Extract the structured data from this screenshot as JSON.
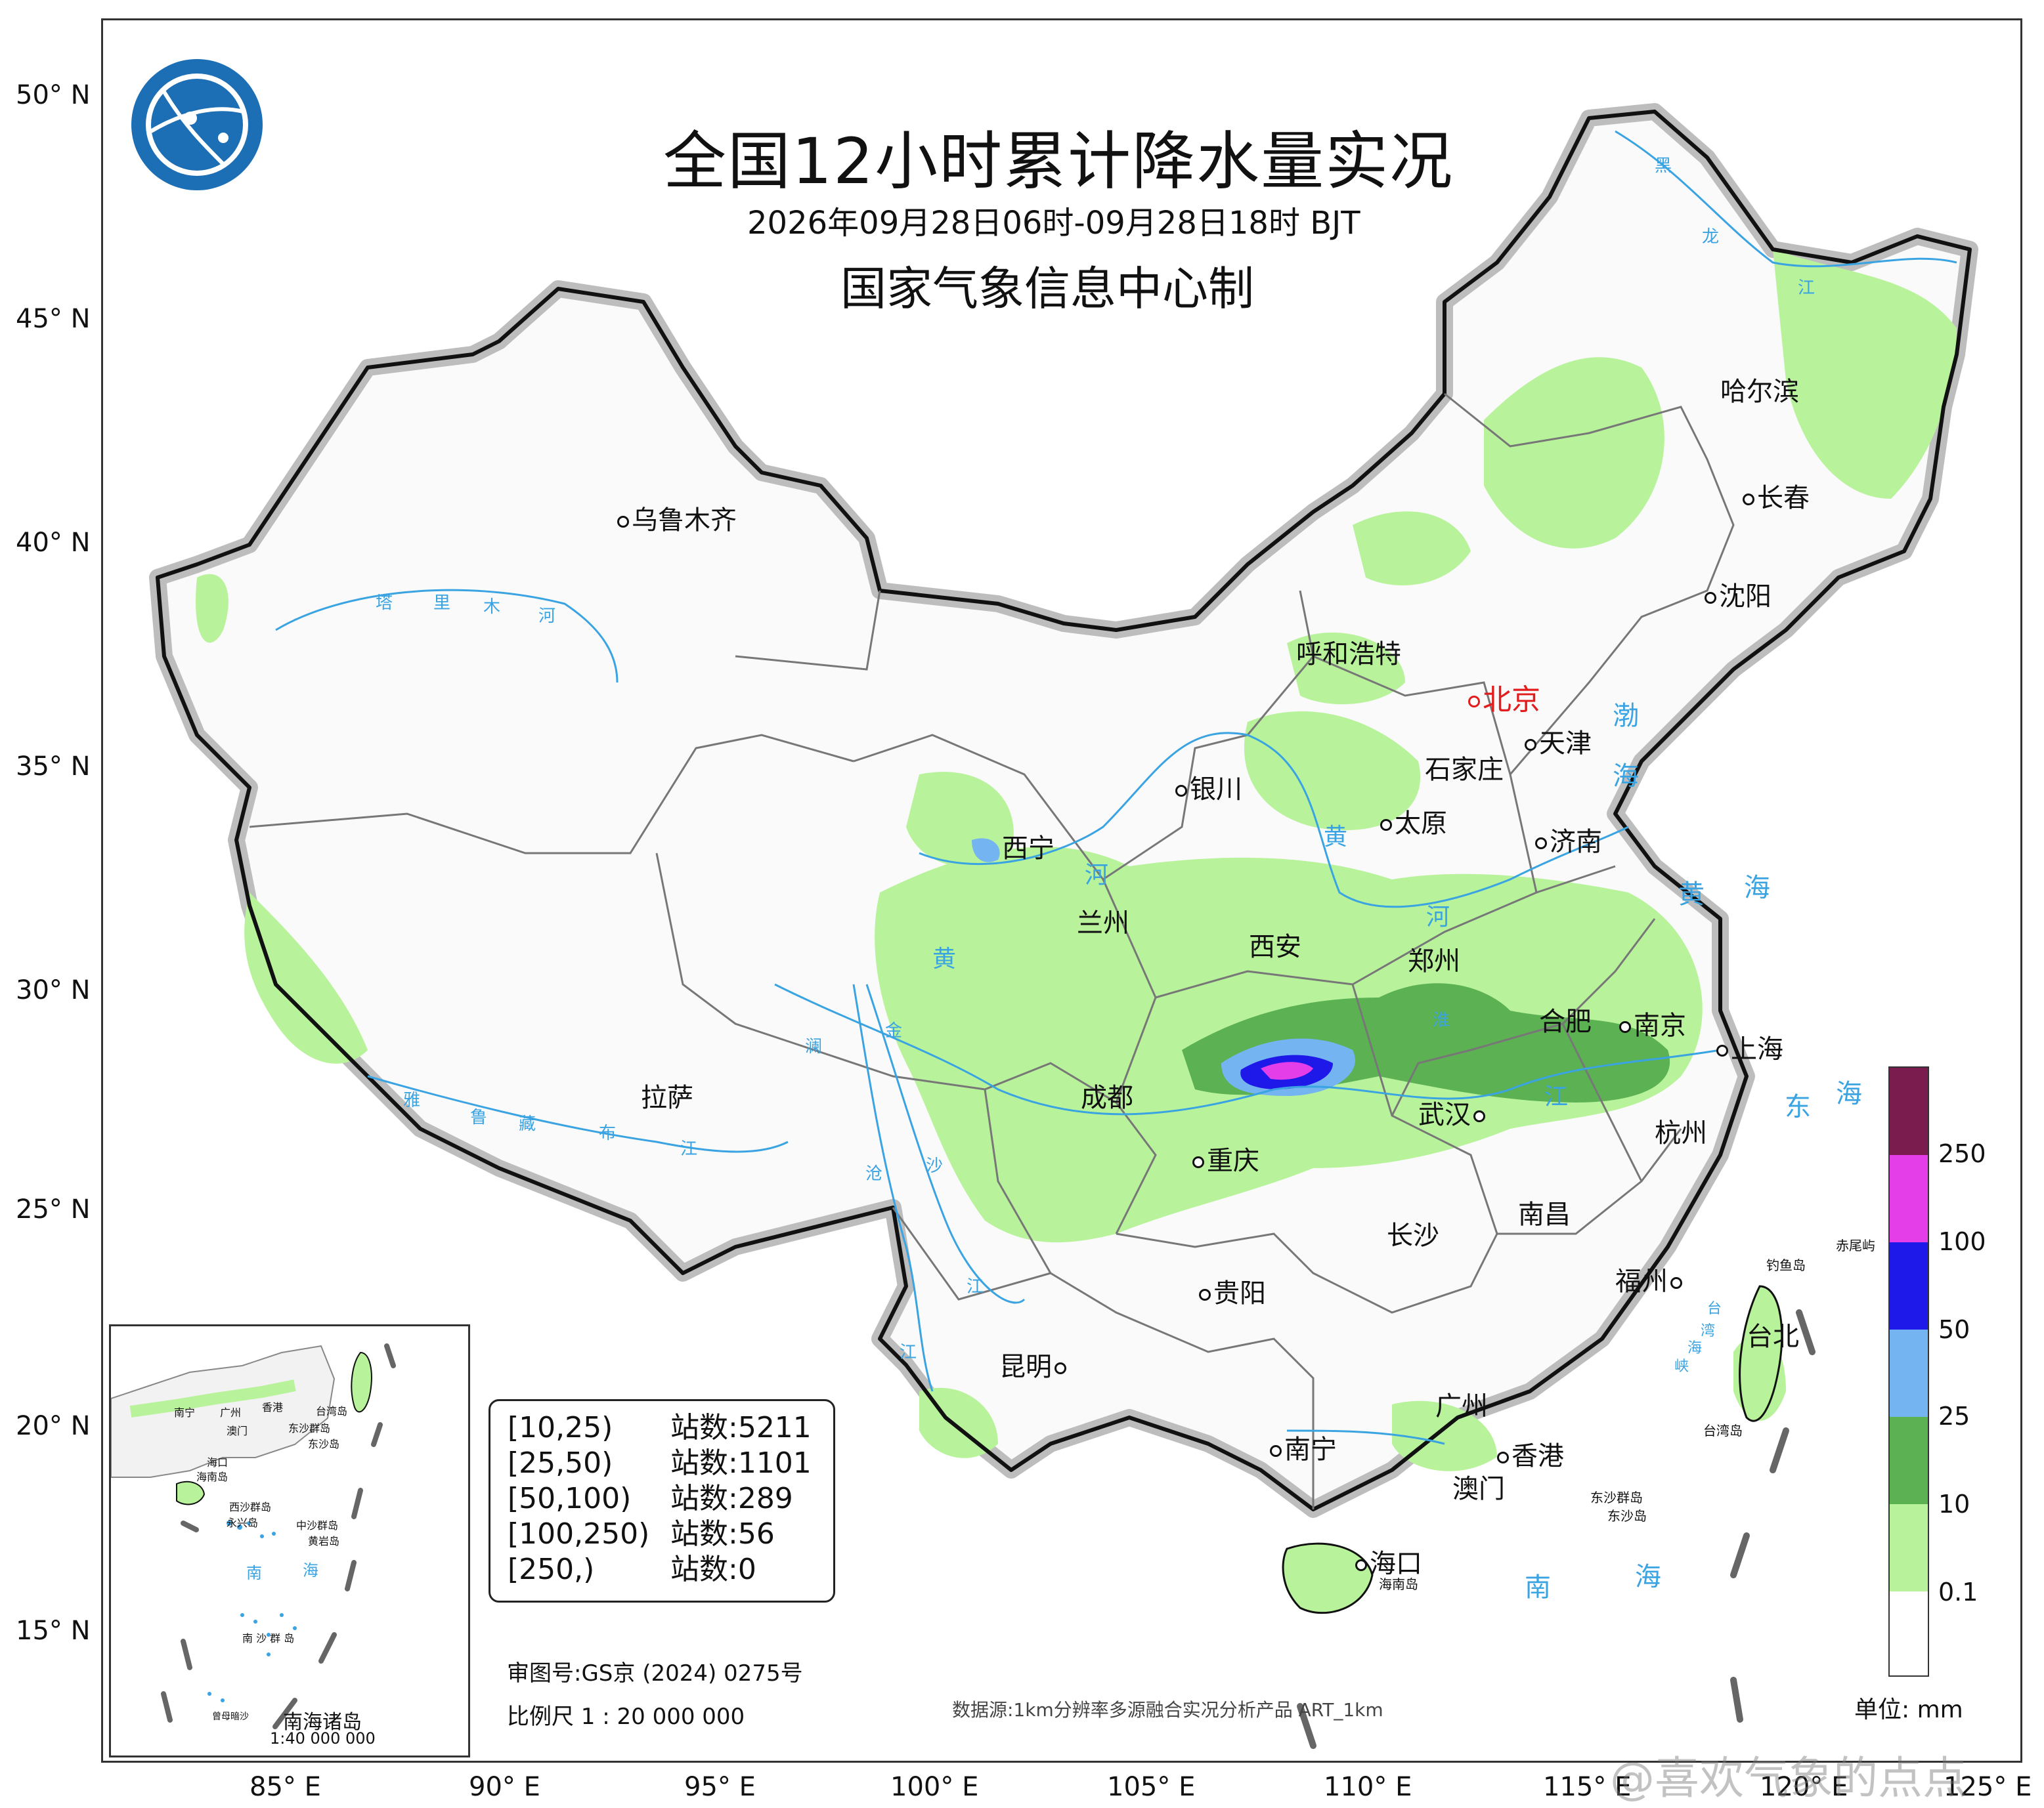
{
  "header": {
    "title": "全国12小时累计降水量实况",
    "time_range": "2026年09月28日06时-09月28日18时 BJT",
    "producer": "国家气象信息中心制"
  },
  "latitude_labels": [
    "50° N",
    "45° N",
    "40° N",
    "35° N",
    "30° N",
    "25° N",
    "20° N",
    "15° N"
  ],
  "longitude_labels": [
    "85° E",
    "90° E",
    "95° E",
    "100° E",
    "105° E",
    "110° E",
    "115° E",
    "120° E",
    "125° E"
  ],
  "cities": {
    "beijing": "北京",
    "tianjin": "天津",
    "shijiazhuang": "石家庄",
    "taiyuan": "太原",
    "jinan": "济南",
    "hohhot": "呼和浩特",
    "harbin": "哈尔滨",
    "changchun": "长春",
    "shenyang": "沈阳",
    "urumqi": "乌鲁木齐",
    "yinchuan": "银川",
    "xining": "西宁",
    "lanzhou": "兰州",
    "xian": "西安",
    "zhengzhou": "郑州",
    "hefei": "合肥",
    "nanjing": "南京",
    "shanghai": "上海",
    "hangzhou": "杭州",
    "wuhan": "武汉",
    "chengdu": "成都",
    "chongqing": "重庆",
    "lhasa": "拉萨",
    "changsha": "长沙",
    "nanchang": "南昌",
    "fuzhou": "福州",
    "taipei": "台北",
    "guiyang": "贵阳",
    "kunming": "昆明",
    "nanning": "南宁",
    "guangzhou": "广州",
    "hongkong": "香港",
    "macau": "澳门",
    "haikou": "海口"
  },
  "seas": {
    "bohai_1": "渤",
    "bohai_2": "海",
    "yellow_sea_1": "黄",
    "yellow_sea_2": "海",
    "east_sea_1": "东",
    "east_sea_2": "海",
    "south_sea_1": "南",
    "south_sea_2": "海",
    "inset_south_1": "南",
    "inset_south_2": "海"
  },
  "rivers": {
    "tarim": [
      "塔",
      "里",
      "木",
      "河"
    ],
    "yellow": [
      "黄",
      "河",
      "黄",
      "河"
    ],
    "yarlung": [
      "雅",
      "鲁",
      "藏",
      "布",
      "江"
    ],
    "lancang": [
      "澜",
      "沧",
      "江"
    ],
    "jinsha": [
      "金",
      "沙",
      "江"
    ],
    "yangtze": [
      "淮",
      "江"
    ],
    "heilong": [
      "黑",
      "龙",
      "江"
    ],
    "taiwan_strait": [
      "台",
      "湾",
      "海",
      "峡"
    ]
  },
  "islands": {
    "diaoyu": "钓鱼岛",
    "chiwei": "赤尾屿",
    "dongsha": "东沙群岛",
    "dongsha_island": "东沙岛",
    "hainan": "海南岛",
    "taiwan": "台湾岛"
  },
  "inset": {
    "title": "南海诸岛",
    "scale": "1:40 000 000",
    "labels": {
      "nanning": "南宁",
      "guangzhou": "广州",
      "hongkong": "香港",
      "macau": "澳门",
      "taiwan": "台湾岛",
      "dongsha": "东沙群岛",
      "dongsha2": "东沙岛",
      "haikou": "海口",
      "hainan": "海南岛",
      "xisha": "西沙群岛",
      "yongxing": "永兴岛",
      "zhongsha": "中沙群岛",
      "huangyan": "黄岩岛",
      "nansha": "南 沙 群 岛",
      "zengmu": "曾母暗沙"
    }
  },
  "stats": [
    {
      "range": "[10,25)",
      "label": "站数:5211",
      "count": 5211
    },
    {
      "range": "[25,50)",
      "label": "站数:1101",
      "count": 1101
    },
    {
      "range": "[50,100)",
      "label": "站数:289",
      "count": 289
    },
    {
      "range": "[100,250)",
      "label": "站数:56",
      "count": 56
    },
    {
      "range": "[250,)",
      "label": "站数:0",
      "count": 0
    }
  ],
  "map_approval": "审图号:GS京 (2024) 0275号",
  "scale": "比例尺 1 : 20 000 000",
  "data_source": "数据源:1km分辨率多源融合实况分析产品 ART_1km",
  "legend": {
    "unit": "单位: mm",
    "ticks": [
      "250",
      "100",
      "50",
      "25",
      "10",
      "0.1"
    ],
    "colors": [
      "#7b1c4e",
      "#e33ee8",
      "#1e18e8",
      "#74b4f0",
      "#5cb152",
      "#b8f39b",
      "#ffffff"
    ]
  },
  "watermark": "@喜欢气象的点点",
  "colors": {
    "light_green": "#b8f39b",
    "dark_green": "#5cb152",
    "light_blue": "#74b4f0",
    "blue": "#1e18e8",
    "magenta": "#e33ee8",
    "river_blue": "#3aa3e2",
    "logo_blue": "#1c6fb5"
  }
}
